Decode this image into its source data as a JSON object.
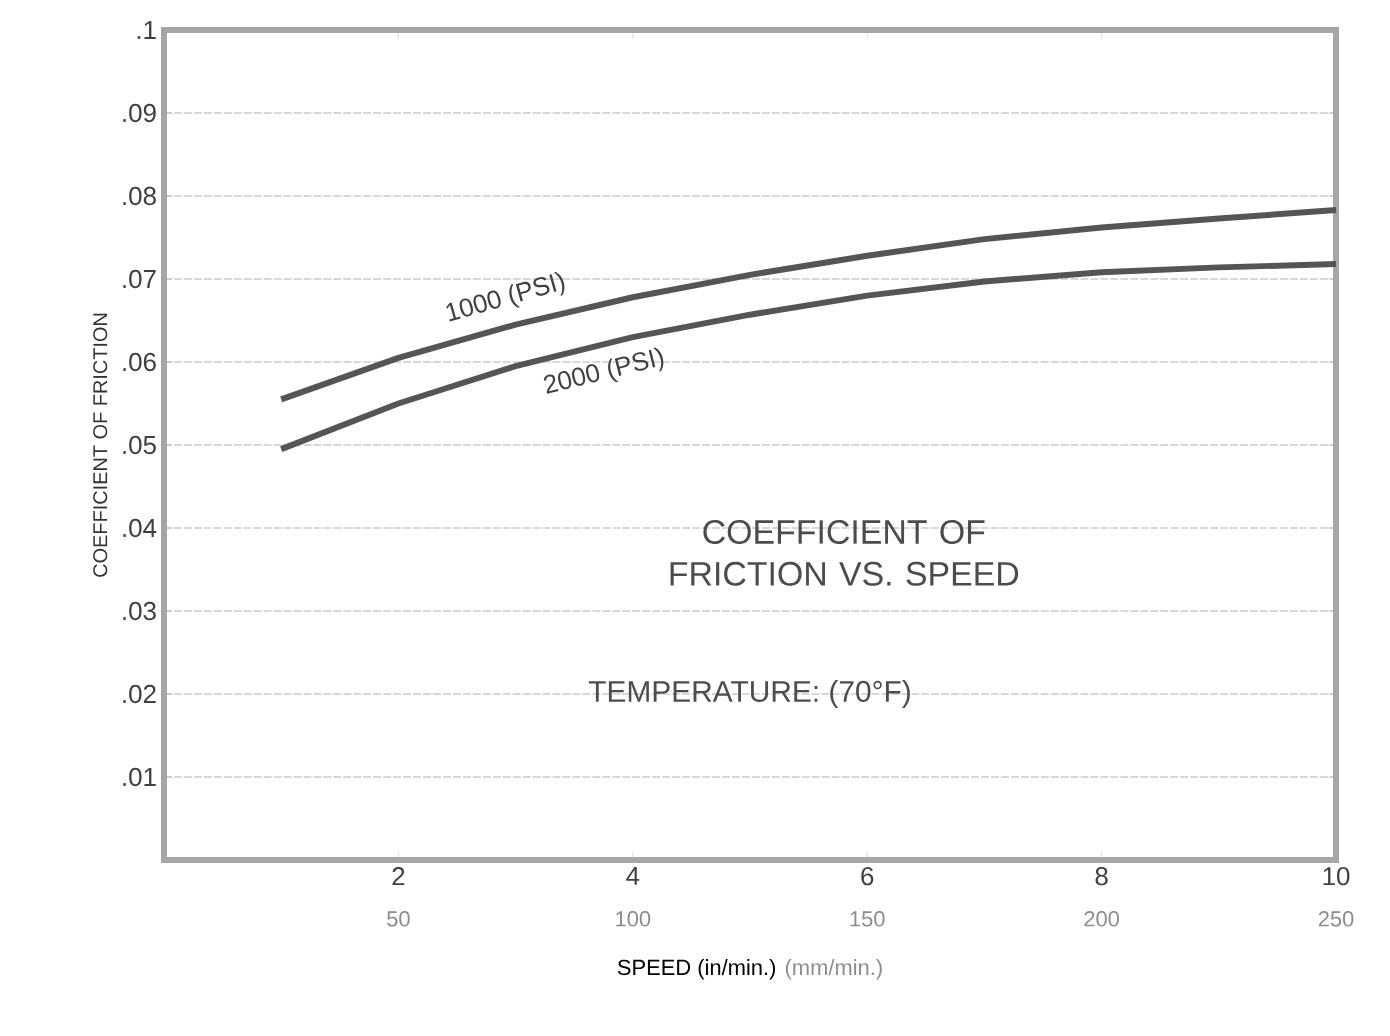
{
  "chart_data": {
    "type": "line",
    "title": "COEFFICIENT OF FRICTION VS. SPEED",
    "subtitle": "TEMPERATURE: (70°F)",
    "xlabel": "SPEED (in/min.)",
    "x2label": "(mm/min.)",
    "ylabel": "COEFFICIENT OF FRICTION",
    "x": [
      1,
      2,
      3,
      4,
      5,
      6,
      7,
      8,
      9,
      10
    ],
    "series": [
      {
        "name": "1000 (PSI)",
        "color": "#555555",
        "values": [
          0.0555,
          0.0605,
          0.0645,
          0.0678,
          0.0705,
          0.0728,
          0.0748,
          0.0762,
          0.0773,
          0.0783
        ]
      },
      {
        "name": "2000 (PSI)",
        "color": "#555555",
        "values": [
          0.0495,
          0.055,
          0.0595,
          0.063,
          0.0657,
          0.068,
          0.0697,
          0.0708,
          0.0714,
          0.0718
        ]
      }
    ],
    "xlim": [
      0,
      10
    ],
    "xticks": [
      2,
      4,
      6,
      8,
      10
    ],
    "x2lim": [
      0,
      250
    ],
    "x2ticks": [
      50,
      100,
      150,
      200,
      250
    ],
    "ylim": [
      0,
      0.1
    ],
    "yticks": [
      {
        "value": 0.01,
        "label": ".01"
      },
      {
        "value": 0.02,
        "label": ".02"
      },
      {
        "value": 0.03,
        "label": ".03"
      },
      {
        "value": 0.04,
        "label": ".04"
      },
      {
        "value": 0.05,
        "label": ".05"
      },
      {
        "value": 0.06,
        "label": ".06"
      },
      {
        "value": 0.07,
        "label": ".07"
      },
      {
        "value": 0.08,
        "label": ".08"
      },
      {
        "value": 0.09,
        "label": ".09"
      },
      {
        "value": 0.1,
        "label": ".1"
      }
    ],
    "grid": "y"
  }
}
